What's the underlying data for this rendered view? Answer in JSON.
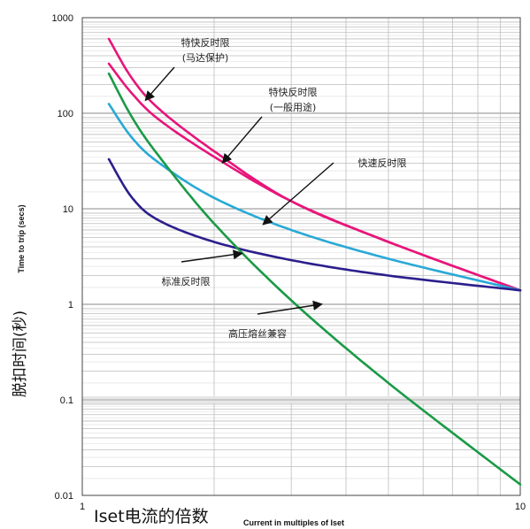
{
  "chart_data": {
    "type": "line",
    "x_scale": "log",
    "y_scale": "log",
    "xlim": [
      1,
      10
    ],
    "ylim": [
      0.01,
      1000
    ],
    "grid": true,
    "xlabel_cn": "Iset电流的倍数",
    "xlabel_en": "Current in multiples of Iset",
    "ylabel_cn": "脱扣时间(秒)",
    "ylabel_en": "Time to trip (secs)",
    "x_ticks": [
      {
        "value": 1,
        "label": "1"
      },
      {
        "value": 10,
        "label": "10"
      }
    ],
    "y_ticks": [
      {
        "value": 0.01,
        "label": "0.01"
      },
      {
        "value": 0.1,
        "label": "0.1"
      },
      {
        "value": 1,
        "label": "1"
      },
      {
        "value": 10,
        "label": "10"
      },
      {
        "value": 100,
        "label": "100"
      },
      {
        "value": 1000,
        "label": "1000"
      }
    ],
    "series": [
      {
        "name": "特快反时限(马达保护)",
        "color": "#e8157a",
        "x": [
          1.15,
          1.3,
          1.5,
          2.0,
          3.0,
          5.0,
          10.0
        ],
        "y": [
          600,
          230,
          110,
          40,
          12,
          4.5,
          1.4
        ]
      },
      {
        "name": "特快反时限(一般用途)",
        "color": "#e8157a",
        "x": [
          1.15,
          1.3,
          1.5,
          2.0,
          3.0,
          5.0,
          10.0
        ],
        "y": [
          330,
          160,
          85,
          35,
          12,
          4.5,
          1.4
        ]
      },
      {
        "name": "快速反时限",
        "color": "#29a9d6",
        "x": [
          1.15,
          1.3,
          1.5,
          2.0,
          3.0,
          5.0,
          10.0
        ],
        "y": [
          125,
          55,
          30,
          13,
          6,
          3,
          1.4
        ]
      },
      {
        "name": "标准反时限",
        "color": "#2b1e8c",
        "x": [
          1.15,
          1.3,
          1.5,
          2.0,
          3.0,
          5.0,
          10.0
        ],
        "y": [
          33,
          13,
          7.5,
          4.5,
          2.9,
          2.0,
          1.4
        ]
      },
      {
        "name": "高压熔丝兼容",
        "color": "#1a9a46",
        "x": [
          1.15,
          1.3,
          1.5,
          2.0,
          3.0,
          5.0,
          10.0
        ],
        "y": [
          260,
          90,
          35,
          7,
          1.1,
          0.15,
          0.013
        ]
      }
    ],
    "annotations": [
      {
        "text_line1": "特快反时限",
        "text_line2": "(马达保护)",
        "series_index": 0,
        "arrow_to": [
          1.4,
          140
        ]
      },
      {
        "text_line1": "特快反时限",
        "text_line2": "(一般用途)",
        "series_index": 1,
        "arrow_to": [
          2.1,
          31
        ]
      },
      {
        "text_line1": "快速反时限",
        "text_line2": "",
        "series_index": 2,
        "arrow_to": [
          2.6,
          7
        ]
      },
      {
        "text_line1": "标准反时限",
        "text_line2": "",
        "series_index": 3,
        "arrow_to": [
          2.3,
          3.4
        ]
      },
      {
        "text_line1": "高压熔丝兼容",
        "text_line2": "",
        "series_index": 4,
        "arrow_to": [
          3.5,
          1.0
        ]
      }
    ]
  }
}
